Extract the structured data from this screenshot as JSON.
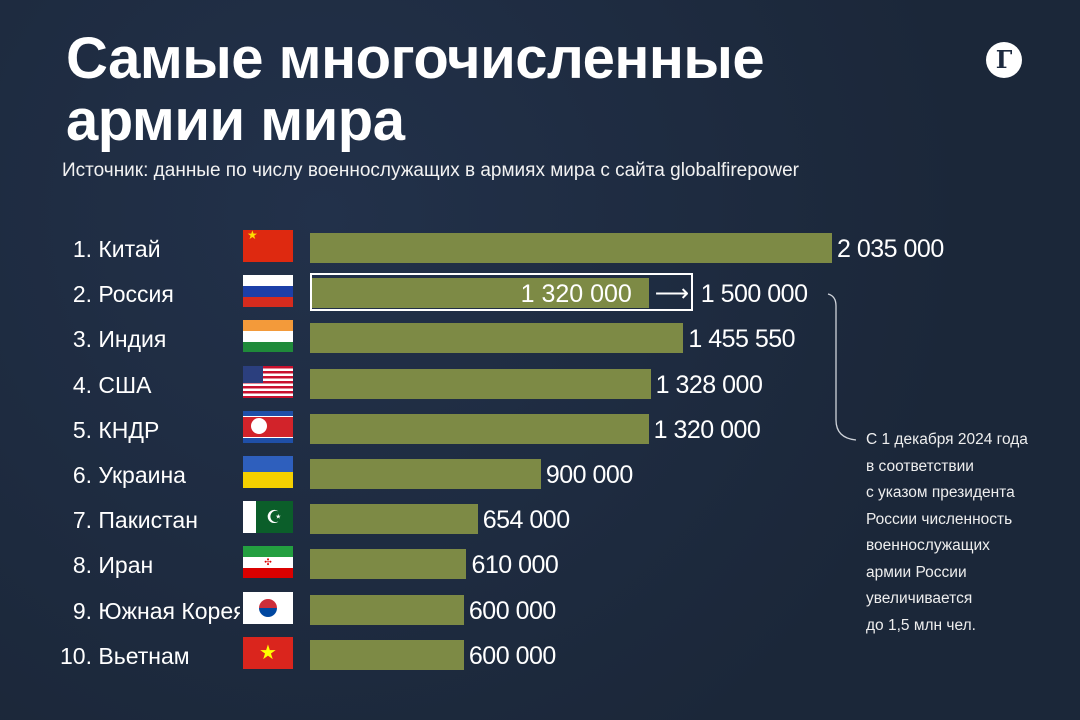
{
  "header": {
    "title_line1": "Самые многочисленные",
    "title_line2": "армии мира",
    "logo": "Г",
    "subtitle": "Источник: данные по числу военнослужащих в армиях мира с сайта globalfirepower"
  },
  "colors": {
    "background": "#1d2a3f",
    "bar": "#7d8a45"
  },
  "chart_data": {
    "type": "bar",
    "orientation": "horizontal",
    "title": "Самые многочисленные армии мира",
    "categories": [
      "1. Китай",
      "2. Россия",
      "3. Индия",
      "4. США",
      "5. КНДР",
      "6. Украина",
      "7. Пакистан",
      "8. Иран",
      "9. Южная Корея",
      "10. Вьетнам"
    ],
    "ranks": [
      "1.",
      "2.",
      "3.",
      "4.",
      "5.",
      "6.",
      "7.",
      "8.",
      "9.",
      "10."
    ],
    "names": [
      "Китай",
      "Россия",
      "Индия",
      "США",
      "КНДР",
      "Украина",
      "Пакистан",
      "Иран",
      "Южная Корея",
      "Вьетнам"
    ],
    "flags": [
      "china",
      "russia",
      "india",
      "usa",
      "north-korea",
      "ukraine",
      "pakistan",
      "iran",
      "south-korea",
      "vietnam"
    ],
    "values": [
      2035000,
      1320000,
      1455550,
      1328000,
      1320000,
      900000,
      654000,
      610000,
      600000,
      600000
    ],
    "labels": [
      "2 035 000",
      "1 320 000",
      "1 455 550",
      "1 328 000",
      "1 320 000",
      "900 000",
      "654 000",
      "610 000",
      "600 000",
      "600 000"
    ],
    "xlim": [
      0,
      2035000
    ],
    "highlight": {
      "index": 1,
      "from_label": "1 320 000",
      "arrow": "⟶",
      "to_label": "1 500 000",
      "to_value": 1500000
    }
  },
  "note": {
    "lines": [
      "С 1 декабря 2024 года",
      "в соответствии",
      "с указом президента",
      "России численность",
      "военнослужащих",
      "армии России",
      "увеличивается",
      "до 1,5 млн чел."
    ]
  }
}
